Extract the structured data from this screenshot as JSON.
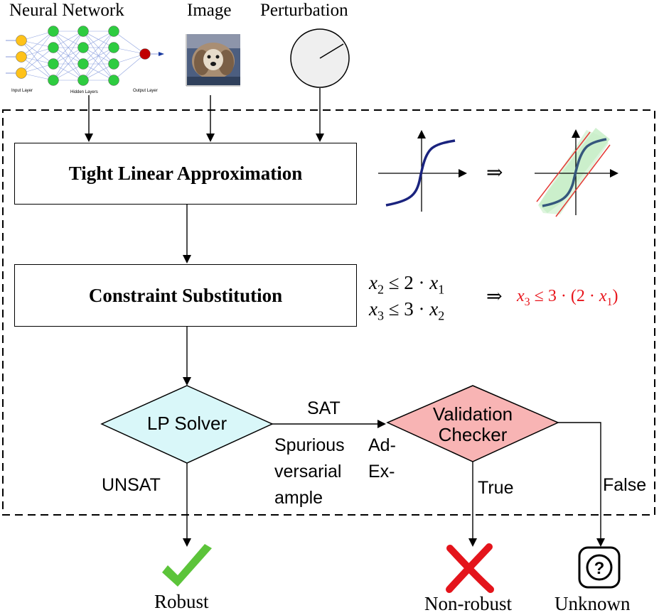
{
  "inputs": {
    "network_label": "Neural Network",
    "image_label": "Image",
    "perturbation_label": "Perturbation",
    "nn_layer_labels": [
      "Input Layer",
      "Hidden Layers",
      "Output Layer"
    ]
  },
  "steps": {
    "approx_label": "Tight Linear Approximation",
    "substitution_label": "Constraint Substitution",
    "lp_solver_label": "LP Solver",
    "validation_label_line1": "Validation",
    "validation_label_line2": "Checker"
  },
  "constraints": {
    "c1_lhs": "x",
    "c1_lhs_sub": "2",
    "c1_rel": " ≤ 2 · ",
    "c1_rhs": "x",
    "c1_rhs_sub": "1",
    "c2_lhs": "x",
    "c2_lhs_sub": "3",
    "c2_rel": " ≤ 3 · ",
    "c2_rhs": "x",
    "c2_rhs_sub": "2",
    "implies": "⇒",
    "result_lhs": "x",
    "result_lhs_sub": "3",
    "result_mid": " ≤ 3 · (2 · ",
    "result_var": "x",
    "result_var_sub": "1",
    "result_end": ")",
    "result_color": "#e8141b"
  },
  "approx_visual": {
    "implies": "⇒",
    "curve_color": "#1a237e",
    "bound_color": "#e53935",
    "fill_color": "#c8efc8"
  },
  "edges": {
    "sat": "SAT",
    "spurious_col1": [
      "Spurious",
      "versarial",
      "ample"
    ],
    "spurious_col2": [
      "Ad-",
      "Ex-"
    ],
    "unsat": "UNSAT",
    "true_label": "True",
    "false_label": "False"
  },
  "outcomes": {
    "robust": "Robust",
    "non_robust": "Non-robust",
    "unknown": "Unknown",
    "robust_color": "#5cc43a",
    "non_robust_color": "#e4141b"
  },
  "colors": {
    "lp_fill": "#d9f7f9",
    "validation_fill": "#f8b4b4",
    "node_input": "#ffc21a",
    "node_hidden": "#2ecc40",
    "node_output": "#c00000"
  }
}
